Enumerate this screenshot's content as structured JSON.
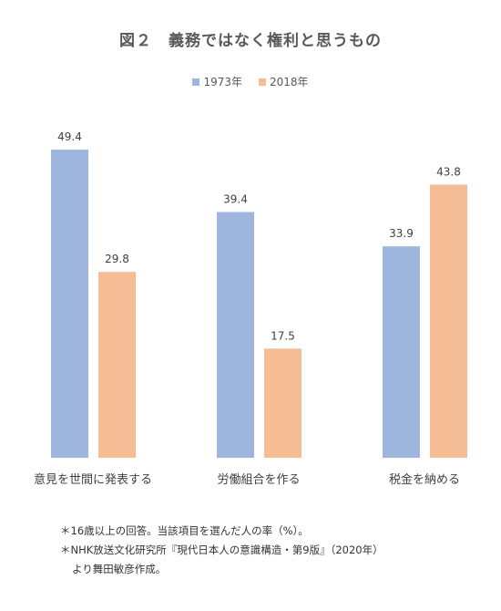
{
  "title": "図２　義務ではなく権利と思うもの",
  "colors": {
    "series1": "#9eb6dd",
    "series2": "#f5bd95"
  },
  "chart_data": {
    "type": "bar",
    "title": "図２　義務ではなく権利と思うもの",
    "categories": [
      "意見を世間に発表する",
      "労働組合を作る",
      "税金を納める"
    ],
    "series": [
      {
        "name": "1973年",
        "values": [
          49.4,
          39.4,
          33.9
        ],
        "color": "#9eb6dd"
      },
      {
        "name": "2018年",
        "values": [
          29.8,
          17.5,
          43.8
        ],
        "color": "#f5bd95"
      }
    ],
    "ylim": [
      0,
      50
    ],
    "legend": "top-center",
    "grid": false
  },
  "notes": [
    "＊16歳以上の回答。当該項目を選んだ人の率（%）。",
    "＊NHK放送文化研究所『現代日本人の意識構造・第9版』（2020年）",
    "より舞田敏彦作成。"
  ]
}
